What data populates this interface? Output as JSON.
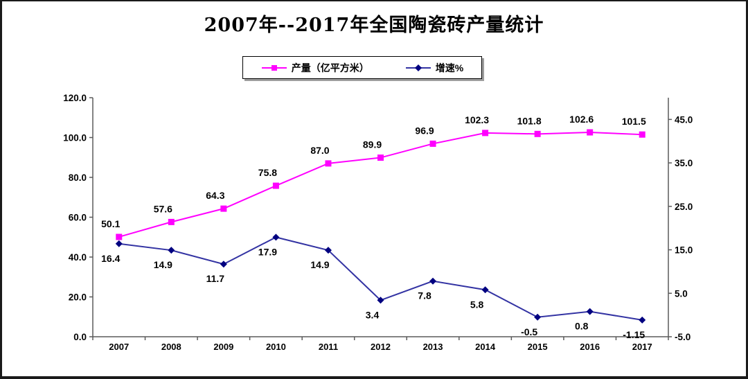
{
  "window": {
    "background": "#FFFFFF",
    "frame_border": "#1A1A1A"
  },
  "colors": {
    "production_line": "#FF00FF",
    "production_marker": "#FF00FF",
    "growth_line": "#3333A3",
    "growth_marker": "#000080",
    "axis": "#5A5A5A",
    "text": "#000000",
    "legend_shadow": "#9E9E9E"
  },
  "chart_data": {
    "type": "line",
    "title": "2007年--2017年全国陶瓷砖产量统计",
    "legend_position": "top",
    "grid": false,
    "categories": [
      "2007",
      "2008",
      "2009",
      "2010",
      "2011",
      "2012",
      "2013",
      "2014",
      "2015",
      "2016",
      "2017"
    ],
    "series": [
      {
        "name": "产量（亿平方米）",
        "axis": "left",
        "marker": "square",
        "color": "#FF00FF",
        "marker_color": "#FF00FF",
        "values": [
          50.1,
          57.6,
          64.3,
          75.8,
          87.0,
          89.9,
          96.9,
          102.3,
          101.8,
          102.6,
          101.5
        ],
        "labels": [
          "50.1",
          "57.6",
          "64.3",
          "75.8",
          "87.0",
          "89.9",
          "96.9",
          "102.3",
          "101.8",
          "102.6",
          "101.5"
        ]
      },
      {
        "name": "增速%",
        "axis": "right",
        "marker": "diamond",
        "color": "#3333A3",
        "marker_color": "#000080",
        "values": [
          16.4,
          14.9,
          11.7,
          17.9,
          14.9,
          3.4,
          7.8,
          5.8,
          -0.5,
          0.8,
          -1.15
        ],
        "labels": [
          "16.4",
          "14.9",
          "11.7",
          "17.9",
          "14.9",
          "3.4",
          "7.8",
          "5.8",
          "-0.5",
          "0.8",
          "-1.15"
        ]
      }
    ],
    "y_axis_left": {
      "min": 0,
      "max": 120,
      "tick_labels": [
        "0.0",
        "20.0",
        "40.0",
        "60.0",
        "80.0",
        "100.0",
        "120.0"
      ]
    },
    "y_axis_right": {
      "min": -5,
      "max": 50,
      "tick_labels": [
        "-5.0",
        "5.0",
        "15.0",
        "25.0",
        "35.0",
        "45.0"
      ]
    }
  }
}
